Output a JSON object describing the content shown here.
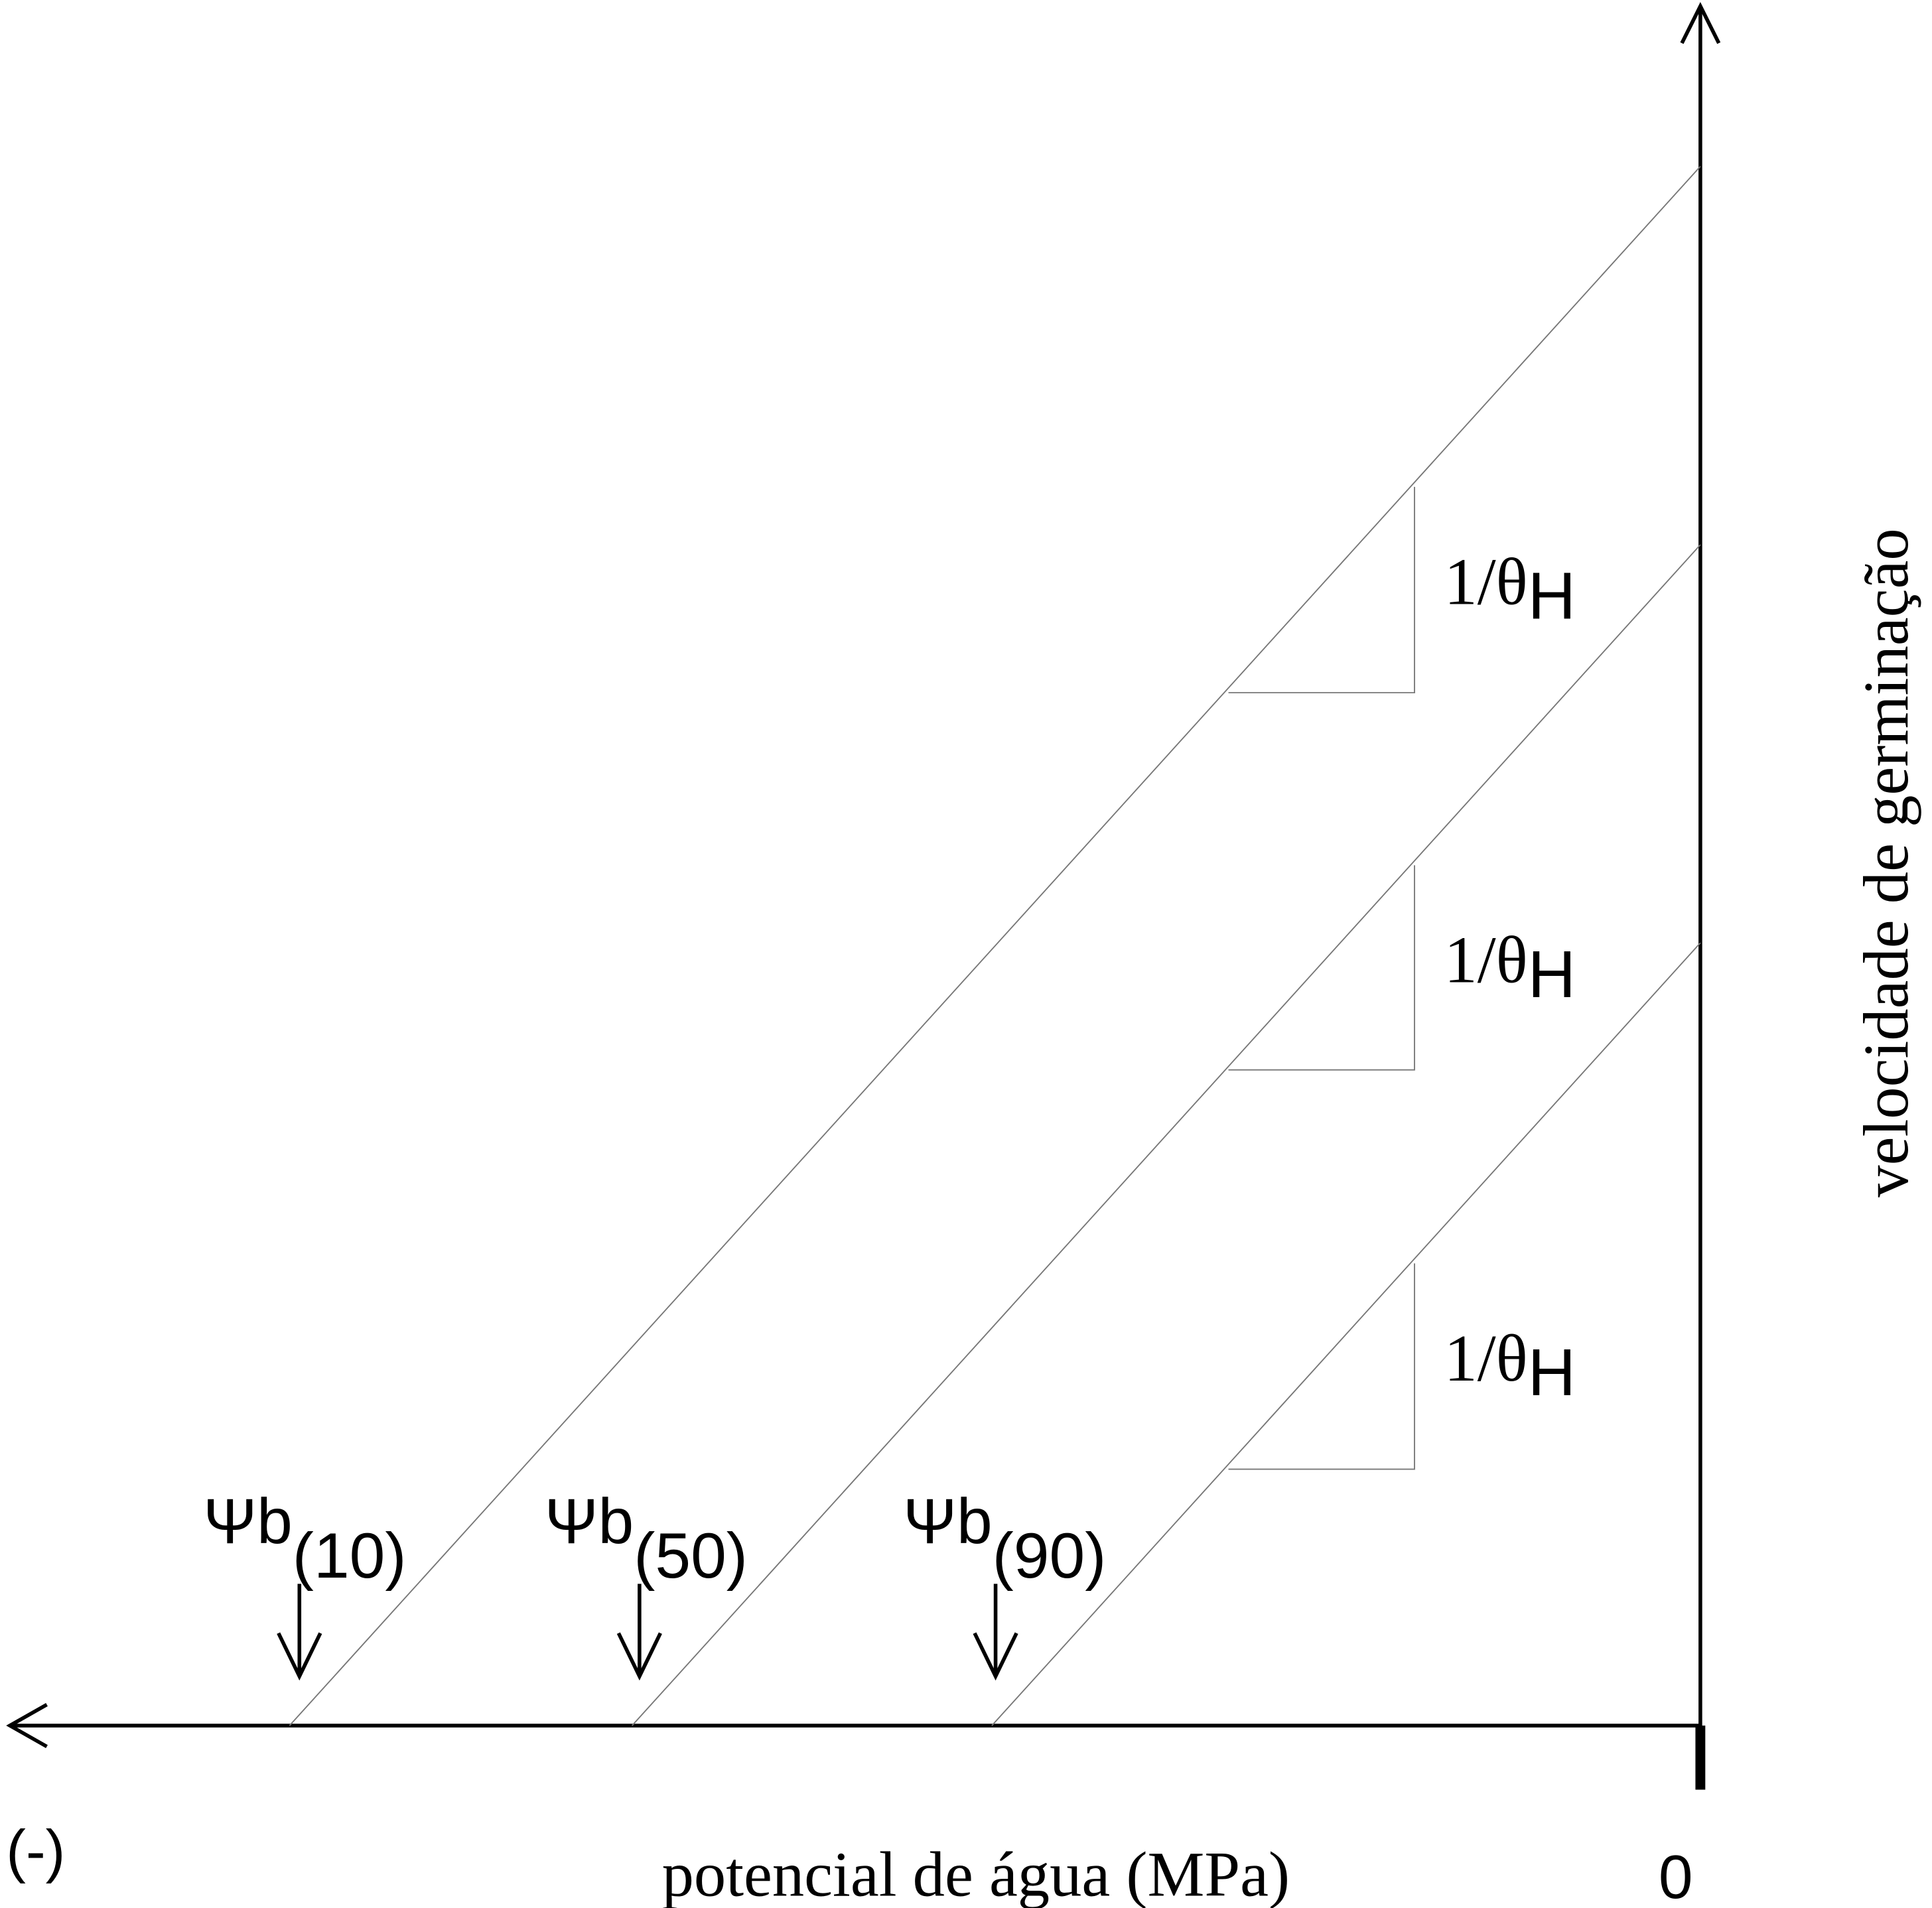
{
  "x_axis": {
    "label": "potencial de água (MPa)",
    "origin_label": "0",
    "direction_label": "(-)"
  },
  "y_axis": {
    "label": "velocidade de germinação"
  },
  "curves": [
    {
      "threshold": {
        "symbol": "Ψb",
        "subscript": "(10)"
      },
      "slope": {
        "text": "1/θ",
        "subscript": "H"
      }
    },
    {
      "threshold": {
        "symbol": "Ψb",
        "subscript": "(50)"
      },
      "slope": {
        "text": "1/θ",
        "subscript": "H"
      }
    },
    {
      "threshold": {
        "symbol": "Ψb",
        "subscript": "(90)"
      },
      "slope": {
        "text": "1/θ",
        "subscript": "H"
      }
    }
  ]
}
